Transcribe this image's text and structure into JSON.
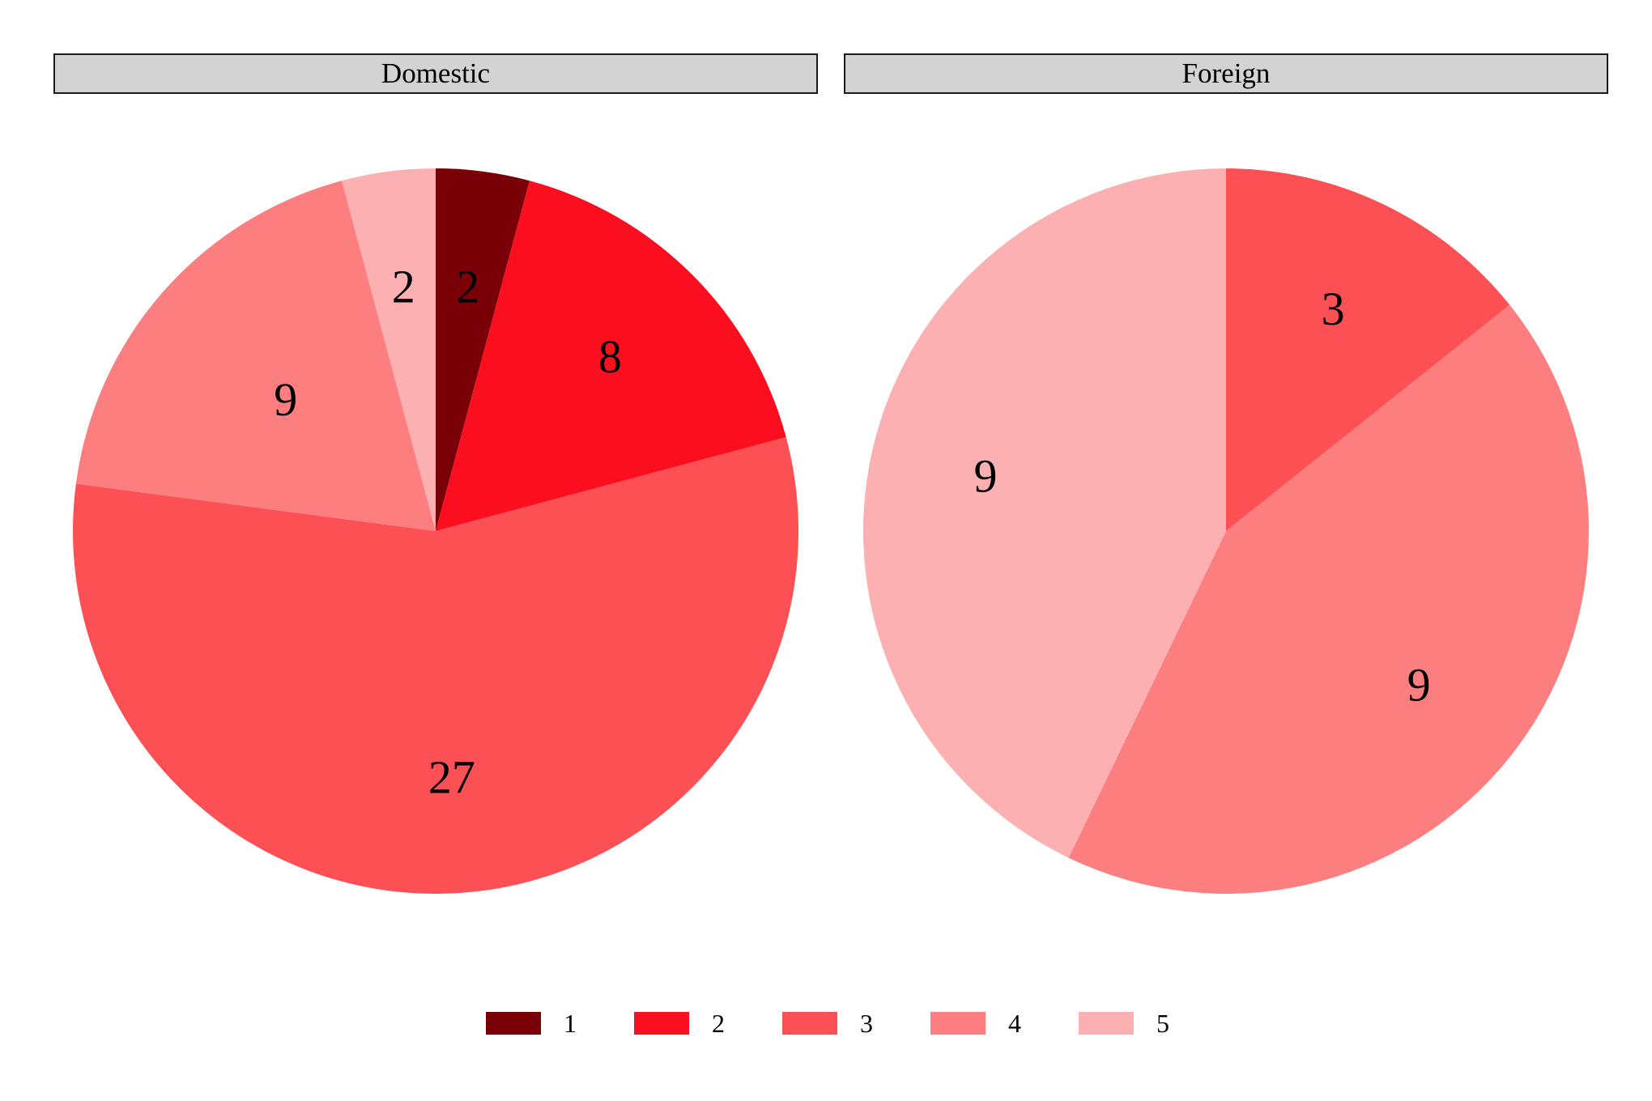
{
  "chart_data": {
    "type": "pie",
    "facets": [
      {
        "name": "Domestic",
        "slices": [
          {
            "category": "1",
            "value": 2
          },
          {
            "category": "2",
            "value": 8
          },
          {
            "category": "3",
            "value": 27
          },
          {
            "category": "4",
            "value": 9
          },
          {
            "category": "5",
            "value": 2
          }
        ]
      },
      {
        "name": "Foreign",
        "slices": [
          {
            "category": "3",
            "value": 3
          },
          {
            "category": "4",
            "value": 9
          },
          {
            "category": "5",
            "value": 9
          }
        ]
      }
    ],
    "legend": {
      "position": "bottom",
      "entries": [
        {
          "label": "1",
          "color": "#7a0008"
        },
        {
          "label": "2",
          "color": "#fb0e1e"
        },
        {
          "label": "3",
          "color": "#fd5054"
        },
        {
          "label": "4",
          "color": "#fd7e7f"
        },
        {
          "label": "5",
          "color": "#fdb0b1"
        }
      ]
    },
    "title": "",
    "data_labels": true
  }
}
